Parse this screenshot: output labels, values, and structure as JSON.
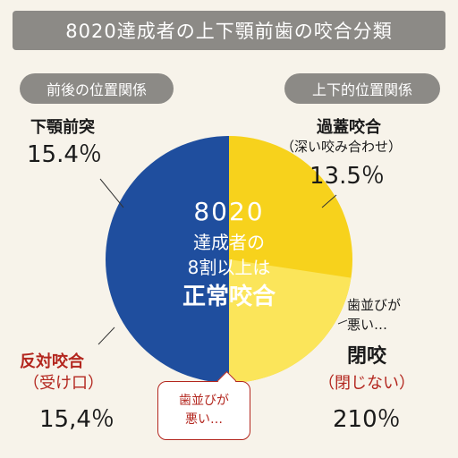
{
  "title": "8020達成者の上下顎前歯の咬合分類",
  "left_header": "前後の位置関係",
  "right_header": "上下的位置関係",
  "center": {
    "line1": "8020",
    "line2": "達成者の",
    "line3": "8割以上は",
    "line4": "正常咬合"
  },
  "labels": {
    "mandibular_prognathism": {
      "name": "下顎前突",
      "value": "15.4％"
    },
    "deep_bite": {
      "name": "過蓋咬合",
      "sub": "（深い咬み合わせ）",
      "value": "13.5％"
    },
    "crossbite": {
      "name": "反対咬合",
      "sub": "（受け口）",
      "value": "15,4％"
    },
    "open_bite": {
      "note": "歯並びが悪い…",
      "name": "閉咬",
      "sub": "（閉じない）",
      "value": "210％"
    }
  },
  "callout": {
    "line1": "歯並びが",
    "line2": "悪い…"
  },
  "chart_data": {
    "type": "pie",
    "slices": [
      {
        "label": "前後の位置関係",
        "value": 50,
        "color": "#1f4e9e"
      },
      {
        "label": "上下的位置関係",
        "value": 50,
        "color": "#f7d21c"
      }
    ]
  },
  "colors": {
    "blue": "#1f4e9e",
    "yellow": "#f7d21c",
    "light_yellow": "#fbe55a",
    "red_text": "#b3261e",
    "header_gray": "#8c8a86",
    "background": "#f7f3ea"
  }
}
